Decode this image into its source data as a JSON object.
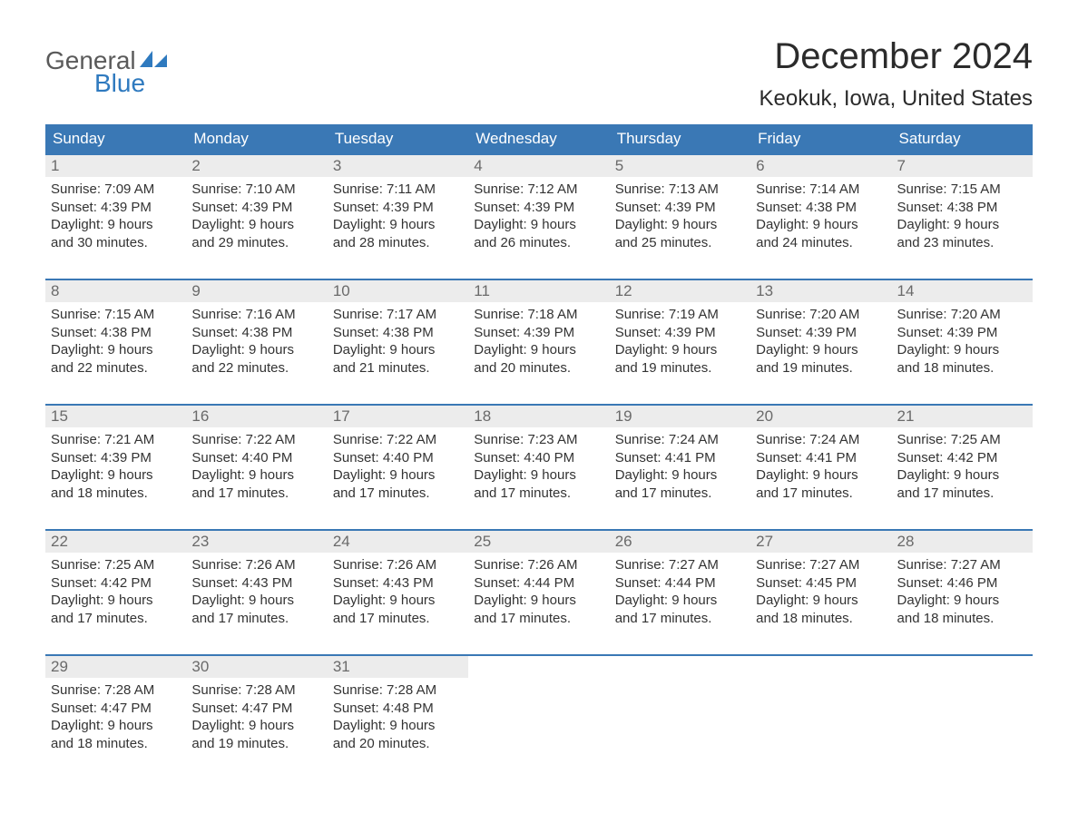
{
  "logo": {
    "line1": "General",
    "line2": "Blue",
    "sail_color": "#2f7abf",
    "text_gray": "#5a5a5a"
  },
  "title": "December 2024",
  "location": "Keokuk, Iowa, United States",
  "colors": {
    "header_bg": "#3a78b5",
    "header_text": "#ffffff",
    "daynum_bg": "#ececec",
    "daynum_text": "#6a6a6a",
    "body_text": "#333333",
    "week_border": "#3a78b5",
    "background": "#ffffff"
  },
  "typography": {
    "title_fontsize": 40,
    "location_fontsize": 24,
    "dayheader_fontsize": 17,
    "daynum_fontsize": 17,
    "daytext_fontsize": 15,
    "logo_fontsize": 28
  },
  "layout": {
    "columns": 7,
    "rows": 5,
    "leading_blanks": 0,
    "trailing_blanks": 4
  },
  "day_names": [
    "Sunday",
    "Monday",
    "Tuesday",
    "Wednesday",
    "Thursday",
    "Friday",
    "Saturday"
  ],
  "days": [
    {
      "n": "1",
      "sunrise": "7:09 AM",
      "sunset": "4:39 PM",
      "dl1": "9 hours",
      "dl2": "30 minutes."
    },
    {
      "n": "2",
      "sunrise": "7:10 AM",
      "sunset": "4:39 PM",
      "dl1": "9 hours",
      "dl2": "29 minutes."
    },
    {
      "n": "3",
      "sunrise": "7:11 AM",
      "sunset": "4:39 PM",
      "dl1": "9 hours",
      "dl2": "28 minutes."
    },
    {
      "n": "4",
      "sunrise": "7:12 AM",
      "sunset": "4:39 PM",
      "dl1": "9 hours",
      "dl2": "26 minutes."
    },
    {
      "n": "5",
      "sunrise": "7:13 AM",
      "sunset": "4:39 PM",
      "dl1": "9 hours",
      "dl2": "25 minutes."
    },
    {
      "n": "6",
      "sunrise": "7:14 AM",
      "sunset": "4:38 PM",
      "dl1": "9 hours",
      "dl2": "24 minutes."
    },
    {
      "n": "7",
      "sunrise": "7:15 AM",
      "sunset": "4:38 PM",
      "dl1": "9 hours",
      "dl2": "23 minutes."
    },
    {
      "n": "8",
      "sunrise": "7:15 AM",
      "sunset": "4:38 PM",
      "dl1": "9 hours",
      "dl2": "22 minutes."
    },
    {
      "n": "9",
      "sunrise": "7:16 AM",
      "sunset": "4:38 PM",
      "dl1": "9 hours",
      "dl2": "22 minutes."
    },
    {
      "n": "10",
      "sunrise": "7:17 AM",
      "sunset": "4:38 PM",
      "dl1": "9 hours",
      "dl2": "21 minutes."
    },
    {
      "n": "11",
      "sunrise": "7:18 AM",
      "sunset": "4:39 PM",
      "dl1": "9 hours",
      "dl2": "20 minutes."
    },
    {
      "n": "12",
      "sunrise": "7:19 AM",
      "sunset": "4:39 PM",
      "dl1": "9 hours",
      "dl2": "19 minutes."
    },
    {
      "n": "13",
      "sunrise": "7:20 AM",
      "sunset": "4:39 PM",
      "dl1": "9 hours",
      "dl2": "19 minutes."
    },
    {
      "n": "14",
      "sunrise": "7:20 AM",
      "sunset": "4:39 PM",
      "dl1": "9 hours",
      "dl2": "18 minutes."
    },
    {
      "n": "15",
      "sunrise": "7:21 AM",
      "sunset": "4:39 PM",
      "dl1": "9 hours",
      "dl2": "18 minutes."
    },
    {
      "n": "16",
      "sunrise": "7:22 AM",
      "sunset": "4:40 PM",
      "dl1": "9 hours",
      "dl2": "17 minutes."
    },
    {
      "n": "17",
      "sunrise": "7:22 AM",
      "sunset": "4:40 PM",
      "dl1": "9 hours",
      "dl2": "17 minutes."
    },
    {
      "n": "18",
      "sunrise": "7:23 AM",
      "sunset": "4:40 PM",
      "dl1": "9 hours",
      "dl2": "17 minutes."
    },
    {
      "n": "19",
      "sunrise": "7:24 AM",
      "sunset": "4:41 PM",
      "dl1": "9 hours",
      "dl2": "17 minutes."
    },
    {
      "n": "20",
      "sunrise": "7:24 AM",
      "sunset": "4:41 PM",
      "dl1": "9 hours",
      "dl2": "17 minutes."
    },
    {
      "n": "21",
      "sunrise": "7:25 AM",
      "sunset": "4:42 PM",
      "dl1": "9 hours",
      "dl2": "17 minutes."
    },
    {
      "n": "22",
      "sunrise": "7:25 AM",
      "sunset": "4:42 PM",
      "dl1": "9 hours",
      "dl2": "17 minutes."
    },
    {
      "n": "23",
      "sunrise": "7:26 AM",
      "sunset": "4:43 PM",
      "dl1": "9 hours",
      "dl2": "17 minutes."
    },
    {
      "n": "24",
      "sunrise": "7:26 AM",
      "sunset": "4:43 PM",
      "dl1": "9 hours",
      "dl2": "17 minutes."
    },
    {
      "n": "25",
      "sunrise": "7:26 AM",
      "sunset": "4:44 PM",
      "dl1": "9 hours",
      "dl2": "17 minutes."
    },
    {
      "n": "26",
      "sunrise": "7:27 AM",
      "sunset": "4:44 PM",
      "dl1": "9 hours",
      "dl2": "17 minutes."
    },
    {
      "n": "27",
      "sunrise": "7:27 AM",
      "sunset": "4:45 PM",
      "dl1": "9 hours",
      "dl2": "18 minutes."
    },
    {
      "n": "28",
      "sunrise": "7:27 AM",
      "sunset": "4:46 PM",
      "dl1": "9 hours",
      "dl2": "18 minutes."
    },
    {
      "n": "29",
      "sunrise": "7:28 AM",
      "sunset": "4:47 PM",
      "dl1": "9 hours",
      "dl2": "18 minutes."
    },
    {
      "n": "30",
      "sunrise": "7:28 AM",
      "sunset": "4:47 PM",
      "dl1": "9 hours",
      "dl2": "19 minutes."
    },
    {
      "n": "31",
      "sunrise": "7:28 AM",
      "sunset": "4:48 PM",
      "dl1": "9 hours",
      "dl2": "20 minutes."
    }
  ],
  "labels": {
    "sunrise_prefix": "Sunrise: ",
    "sunset_prefix": "Sunset: ",
    "daylight_prefix": "Daylight: ",
    "and_prefix": "and "
  }
}
